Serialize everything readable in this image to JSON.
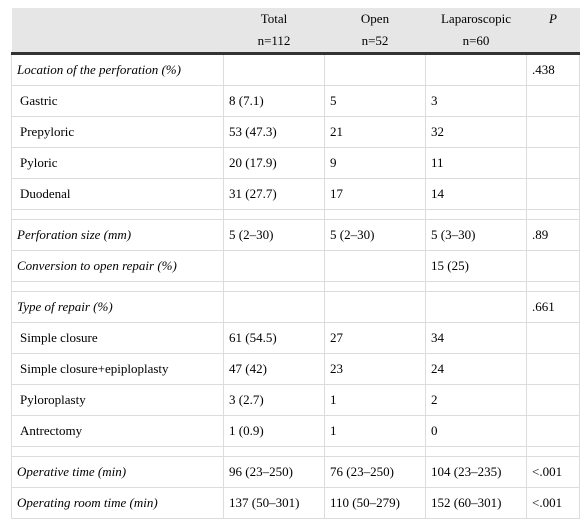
{
  "header": {
    "col_label": "",
    "total_top": "Total",
    "total_bottom": "n=112",
    "open_top": "Open",
    "open_bottom": "n=52",
    "lap_top": "Laparoscopic",
    "lap_bottom": "n=60",
    "p_label": "P"
  },
  "rows": [
    {
      "kind": "section",
      "label": "Location of the perforation (%)",
      "total": "",
      "open": "",
      "lap": "",
      "p": ".438"
    },
    {
      "kind": "sub",
      "label": "Gastric",
      "total": "8 (7.1)",
      "open": "5",
      "lap": "3",
      "p": ""
    },
    {
      "kind": "sub",
      "label": "Prepyloric",
      "total": "53 (47.3)",
      "open": "21",
      "lap": "32",
      "p": ""
    },
    {
      "kind": "sub",
      "label": "Pyloric",
      "total": "20 (17.9)",
      "open": "9",
      "lap": "11",
      "p": ""
    },
    {
      "kind": "sub",
      "label": "Duodenal",
      "total": "31 (27.7)",
      "open": "17",
      "lap": "14",
      "p": ""
    },
    {
      "kind": "spacer"
    },
    {
      "kind": "section",
      "label": "Perforation size (mm)",
      "total": "5 (2–30)",
      "open": "5 (2–30)",
      "lap": "5 (3–30)",
      "p": ".89"
    },
    {
      "kind": "section",
      "label": "Conversion to open repair (%)",
      "total": "",
      "open": "",
      "lap": "15 (25)",
      "p": ""
    },
    {
      "kind": "spacer"
    },
    {
      "kind": "section",
      "label": "Type of repair (%)",
      "total": "",
      "open": "",
      "lap": "",
      "p": ".661"
    },
    {
      "kind": "sub",
      "label": "Simple closure",
      "total": "61 (54.5)",
      "open": "27",
      "lap": "34",
      "p": ""
    },
    {
      "kind": "sub",
      "label": "Simple closure+epiploplasty",
      "total": "47 (42)",
      "open": "23",
      "lap": "24",
      "p": ""
    },
    {
      "kind": "sub",
      "label": "Pyloroplasty",
      "total": "3 (2.7)",
      "open": "1",
      "lap": "2",
      "p": ""
    },
    {
      "kind": "sub",
      "label": "Antrectomy",
      "total": "1 (0.9)",
      "open": "1",
      "lap": "0",
      "p": ""
    },
    {
      "kind": "spacer"
    },
    {
      "kind": "section",
      "label": "Operative time (min)",
      "total": "96 (23–250)",
      "open": "76 (23–250)",
      "lap": "104 (23–235)",
      "p": "<.001"
    },
    {
      "kind": "section",
      "label": "Operating room time (min)",
      "total": "137 (50–301)",
      "open": "110 (50–279)",
      "lap": "152 (60–301)",
      "p": "<.001"
    }
  ]
}
